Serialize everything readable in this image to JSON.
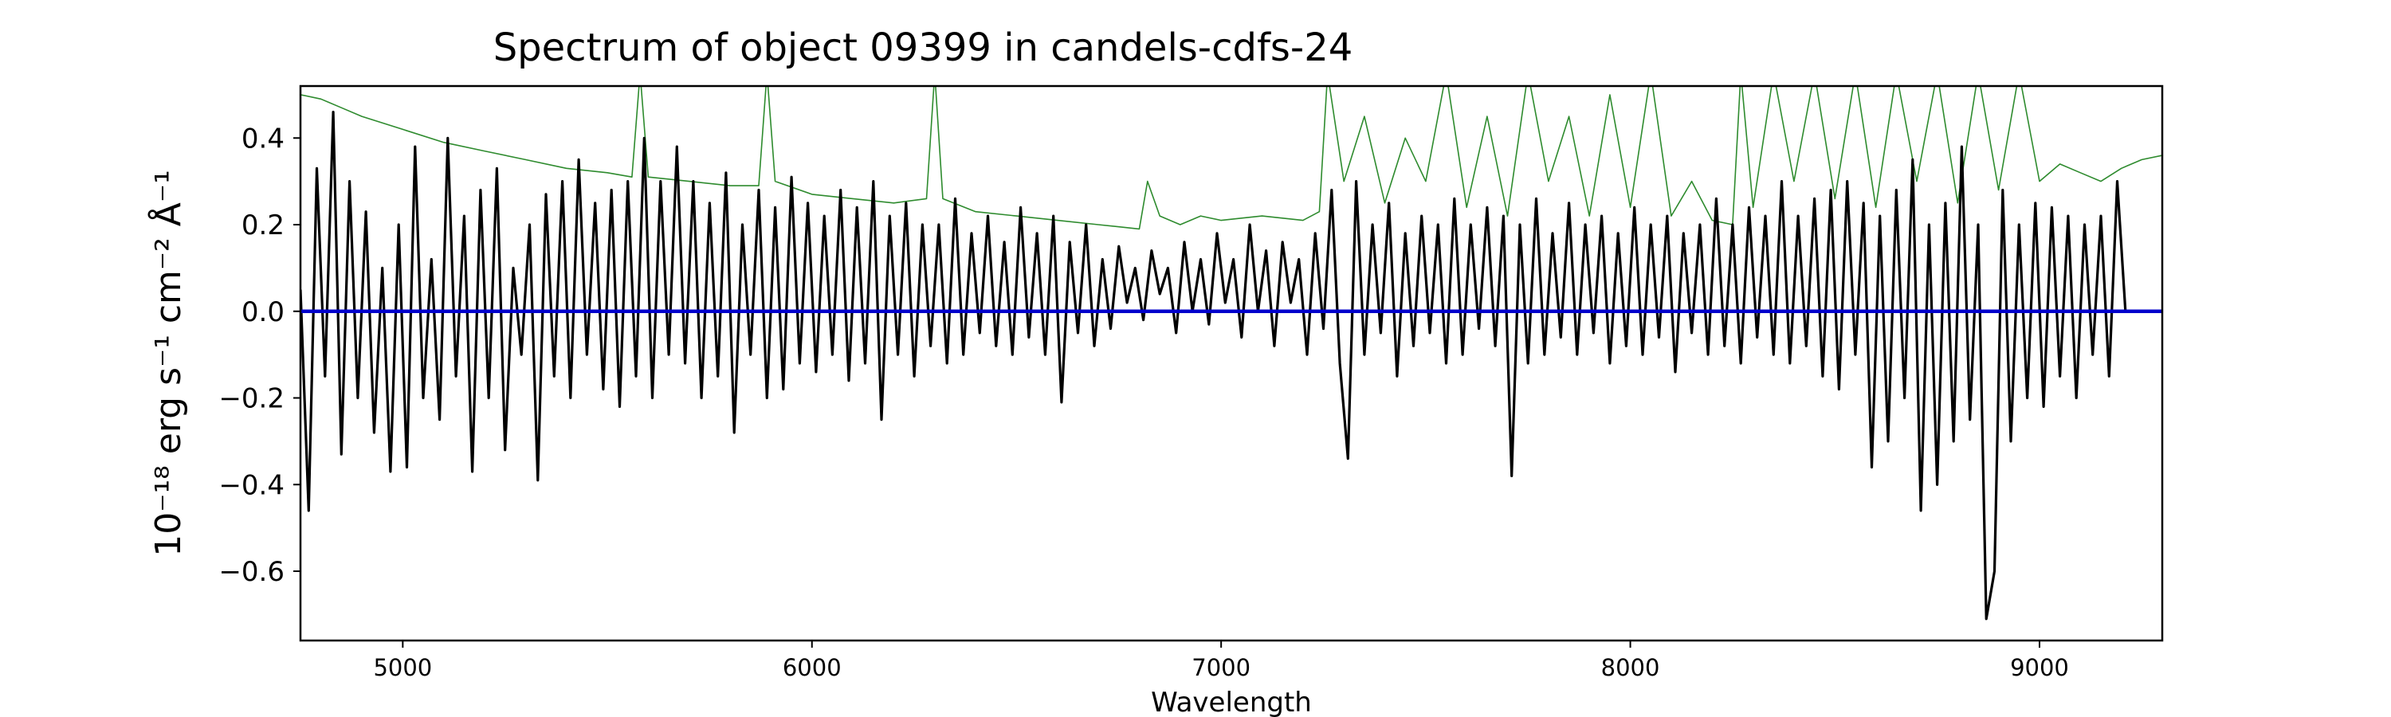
{
  "chart_data": {
    "type": "line",
    "title": "Spectrum of object 09399 in candels-cdfs-24",
    "xlabel": "Wavelength",
    "ylabel": "10⁻¹⁸ erg s⁻¹ cm⁻² Å⁻¹",
    "xlim": [
      4750,
      9300
    ],
    "ylim": [
      -0.76,
      0.52
    ],
    "xticks": [
      5000,
      6000,
      7000,
      8000,
      9000
    ],
    "xtick_labels": [
      "5000",
      "6000",
      "7000",
      "8000",
      "9000"
    ],
    "yticks": [
      0.4,
      0.2,
      0.0,
      -0.2,
      -0.4,
      -0.6
    ],
    "ytick_labels": [
      "0.4",
      "0.2",
      "0.0",
      "−0.2",
      "−0.4",
      "−0.6"
    ],
    "grid": false,
    "colors": {
      "flux": "#000000",
      "error": "#2e8b2e",
      "zero_line": "#0000cc"
    },
    "series": [
      {
        "key": "error",
        "wavelength": [
          4750,
          4800,
          4850,
          4900,
          5000,
          5100,
          5200,
          5300,
          5400,
          5500,
          5560,
          5580,
          5600,
          5700,
          5800,
          5870,
          5890,
          5910,
          6000,
          6100,
          6200,
          6280,
          6300,
          6320,
          6400,
          6500,
          6600,
          6700,
          6800,
          6820,
          6850,
          6900,
          6950,
          7000,
          7100,
          7200,
          7240,
          7260,
          7300,
          7350,
          7400,
          7450,
          7500,
          7550,
          7600,
          7650,
          7700,
          7750,
          7800,
          7850,
          7900,
          7950,
          8000,
          8050,
          8100,
          8150,
          8200,
          8250,
          8270,
          8300,
          8350,
          8400,
          8450,
          8500,
          8550,
          8600,
          8650,
          8700,
          8750,
          8800,
          8850,
          8900,
          8950,
          9000,
          9050,
          9100,
          9150,
          9200,
          9250,
          9300
        ],
        "values": [
          0.5,
          0.49,
          0.47,
          0.45,
          0.42,
          0.39,
          0.37,
          0.35,
          0.33,
          0.32,
          0.31,
          0.55,
          0.31,
          0.3,
          0.29,
          0.29,
          0.55,
          0.3,
          0.27,
          0.26,
          0.25,
          0.26,
          0.55,
          0.26,
          0.23,
          0.22,
          0.21,
          0.2,
          0.19,
          0.3,
          0.22,
          0.2,
          0.22,
          0.21,
          0.22,
          0.21,
          0.23,
          0.55,
          0.3,
          0.45,
          0.25,
          0.4,
          0.3,
          0.55,
          0.24,
          0.45,
          0.22,
          0.55,
          0.3,
          0.45,
          0.22,
          0.5,
          0.24,
          0.55,
          0.22,
          0.3,
          0.21,
          0.2,
          0.55,
          0.24,
          0.55,
          0.3,
          0.55,
          0.26,
          0.55,
          0.24,
          0.55,
          0.3,
          0.55,
          0.25,
          0.55,
          0.28,
          0.55,
          0.3,
          0.34,
          0.32,
          0.3,
          0.33,
          0.35,
          0.36
        ]
      },
      {
        "key": "flux",
        "wavelength": [
          4750,
          4770,
          4790,
          4810,
          4830,
          4850,
          4870,
          4890,
          4910,
          4930,
          4950,
          4970,
          4990,
          5010,
          5030,
          5050,
          5070,
          5090,
          5110,
          5130,
          5150,
          5170,
          5190,
          5210,
          5230,
          5250,
          5270,
          5290,
          5310,
          5330,
          5350,
          5370,
          5390,
          5410,
          5430,
          5450,
          5470,
          5490,
          5510,
          5530,
          5550,
          5570,
          5590,
          5610,
          5630,
          5650,
          5670,
          5690,
          5710,
          5730,
          5750,
          5770,
          5790,
          5810,
          5830,
          5850,
          5870,
          5890,
          5910,
          5930,
          5950,
          5970,
          5990,
          6010,
          6030,
          6050,
          6070,
          6090,
          6110,
          6130,
          6150,
          6170,
          6190,
          6210,
          6230,
          6250,
          6270,
          6290,
          6310,
          6330,
          6350,
          6370,
          6390,
          6410,
          6430,
          6450,
          6470,
          6490,
          6510,
          6530,
          6550,
          6570,
          6590,
          6610,
          6630,
          6650,
          6670,
          6690,
          6710,
          6730,
          6750,
          6770,
          6790,
          6810,
          6830,
          6850,
          6870,
          6890,
          6910,
          6930,
          6950,
          6970,
          6990,
          7010,
          7030,
          7050,
          7070,
          7090,
          7110,
          7130,
          7150,
          7170,
          7190,
          7210,
          7230,
          7250,
          7270,
          7290,
          7310,
          7330,
          7350,
          7370,
          7390,
          7410,
          7430,
          7450,
          7470,
          7490,
          7510,
          7530,
          7550,
          7570,
          7590,
          7610,
          7630,
          7650,
          7670,
          7690,
          7710,
          7730,
          7750,
          7770,
          7790,
          7810,
          7830,
          7850,
          7870,
          7890,
          7910,
          7930,
          7950,
          7970,
          7990,
          8010,
          8030,
          8050,
          8070,
          8090,
          8110,
          8130,
          8150,
          8170,
          8190,
          8210,
          8230,
          8250,
          8270,
          8290,
          8310,
          8330,
          8350,
          8370,
          8390,
          8410,
          8430,
          8450,
          8470,
          8490,
          8510,
          8530,
          8550,
          8570,
          8590,
          8610,
          8630,
          8650,
          8670,
          8690,
          8710,
          8730,
          8750,
          8770,
          8790,
          8810,
          8830,
          8850,
          8870,
          8890,
          8910,
          8930,
          8950,
          8970,
          8990,
          9010,
          9030,
          9050,
          9070,
          9090,
          9110,
          9130,
          9150,
          9170,
          9190,
          9210,
          9230,
          9250,
          9270,
          9290,
          9300
        ],
        "values": [
          0.05,
          -0.46,
          0.33,
          -0.15,
          0.46,
          -0.33,
          0.3,
          -0.2,
          0.23,
          -0.28,
          0.1,
          -0.37,
          0.2,
          -0.36,
          0.38,
          -0.2,
          0.12,
          -0.25,
          0.4,
          -0.15,
          0.22,
          -0.37,
          0.28,
          -0.2,
          0.33,
          -0.32,
          0.1,
          -0.1,
          0.2,
          -0.39,
          0.27,
          -0.15,
          0.3,
          -0.2,
          0.35,
          -0.1,
          0.25,
          -0.18,
          0.28,
          -0.22,
          0.3,
          -0.15,
          0.4,
          -0.2,
          0.3,
          -0.1,
          0.38,
          -0.12,
          0.3,
          -0.2,
          0.25,
          -0.15,
          0.32,
          -0.28,
          0.2,
          -0.1,
          0.28,
          -0.2,
          0.24,
          -0.18,
          0.31,
          -0.12,
          0.25,
          -0.14,
          0.22,
          -0.1,
          0.28,
          -0.16,
          0.24,
          -0.12,
          0.3,
          -0.25,
          0.22,
          -0.1,
          0.25,
          -0.15,
          0.2,
          -0.08,
          0.2,
          -0.12,
          0.26,
          -0.1,
          0.18,
          -0.05,
          0.22,
          -0.08,
          0.16,
          -0.1,
          0.24,
          -0.06,
          0.18,
          -0.1,
          0.22,
          -0.21,
          0.16,
          -0.05,
          0.2,
          -0.08,
          0.12,
          -0.04,
          0.15,
          0.02,
          0.1,
          -0.02,
          0.14,
          0.04,
          0.1,
          -0.05,
          0.16,
          0.0,
          0.12,
          -0.03,
          0.18,
          0.02,
          0.12,
          -0.06,
          0.2,
          0.0,
          0.14,
          -0.08,
          0.16,
          0.02,
          0.12,
          -0.1,
          0.18,
          -0.04,
          0.28,
          -0.12,
          -0.34,
          0.3,
          -0.1,
          0.2,
          -0.05,
          0.25,
          -0.15,
          0.18,
          -0.08,
          0.22,
          -0.05,
          0.2,
          -0.12,
          0.26,
          -0.1,
          0.2,
          -0.04,
          0.24,
          -0.08,
          0.22,
          -0.38,
          0.2,
          -0.12,
          0.26,
          -0.1,
          0.18,
          -0.06,
          0.25,
          -0.1,
          0.2,
          -0.05,
          0.22,
          -0.12,
          0.18,
          -0.08,
          0.24,
          -0.1,
          0.2,
          -0.06,
          0.22,
          -0.14,
          0.18,
          -0.05,
          0.2,
          -0.1,
          0.26,
          -0.08,
          0.2,
          -0.12,
          0.24,
          -0.06,
          0.22,
          -0.1,
          0.3,
          -0.12,
          0.22,
          -0.08,
          0.26,
          -0.15,
          0.28,
          -0.18,
          0.3,
          -0.1,
          0.25,
          -0.36,
          0.22,
          -0.3,
          0.28,
          -0.2,
          0.35,
          -0.46,
          0.2,
          -0.4,
          0.25,
          -0.3,
          0.38,
          -0.25,
          0.2,
          -0.71,
          -0.6,
          0.28,
          -0.3,
          0.2,
          -0.2,
          0.25,
          -0.22,
          0.24,
          -0.15,
          0.22,
          -0.2,
          0.2,
          -0.1,
          0.22,
          -0.15,
          0.3,
          0.0
        ]
      },
      {
        "key": "zero",
        "wavelength": [
          4750,
          9300
        ],
        "values": [
          0.0,
          0.0
        ]
      }
    ]
  }
}
